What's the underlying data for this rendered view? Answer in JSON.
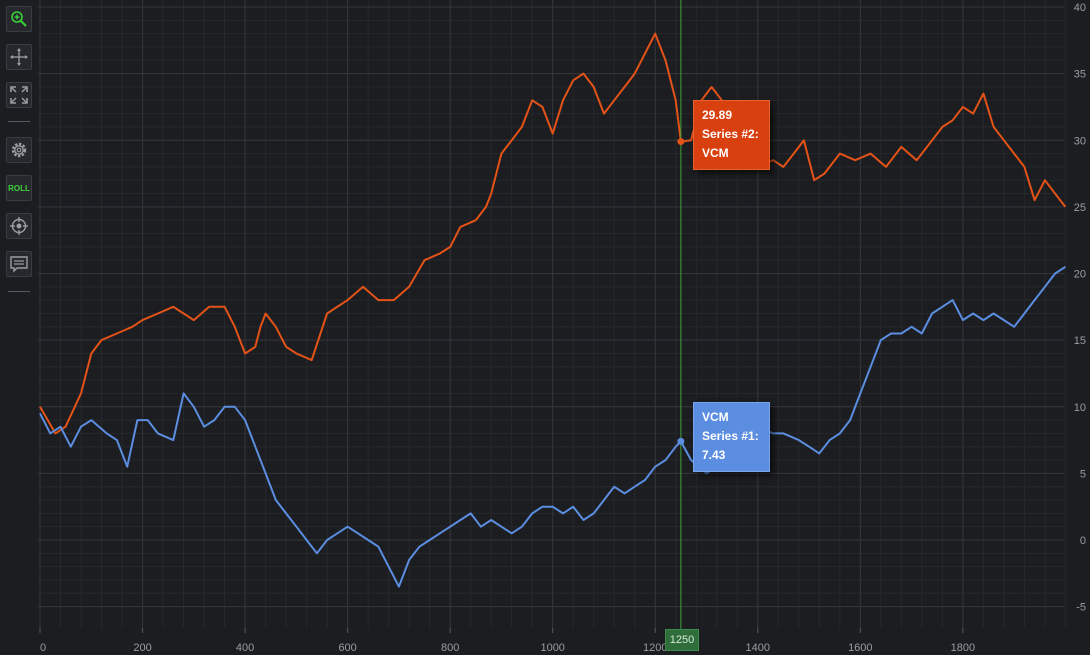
{
  "toolbar": {
    "buttons": [
      {
        "name": "zoom-icon"
      },
      {
        "name": "pan-icon"
      },
      {
        "name": "zoom-extents-icon"
      },
      {
        "name": "settings-icon"
      },
      {
        "name": "roll-icon",
        "label": "ROLL"
      },
      {
        "name": "crosshair-icon"
      },
      {
        "name": "tooltip-icon"
      }
    ]
  },
  "cursor": {
    "x_label": "1250"
  },
  "tooltips": {
    "series2": {
      "value": "29.89",
      "name": "Series #2:",
      "group": "VCM"
    },
    "series1": {
      "group": "VCM",
      "name": "Series #1:",
      "value": "7.43"
    }
  },
  "chart_data": {
    "type": "line",
    "x_ticks": [
      "0",
      "200",
      "400",
      "600",
      "800",
      "1000",
      "1200",
      "1400",
      "1600",
      "1800"
    ],
    "y_ticks": [
      "-5",
      "0",
      "5",
      "10",
      "15",
      "20",
      "25",
      "30",
      "35",
      "40"
    ],
    "xlim": [
      0,
      2000
    ],
    "ylim": [
      -5,
      40
    ],
    "grid": true,
    "cursor_x": 1250,
    "colors": {
      "series1": "#5b8de0",
      "series2": "#e35318",
      "cursor": "#3ea33e",
      "grid_major": "#34363b",
      "grid_minor": "#26282c"
    },
    "series": [
      {
        "key": "series2",
        "color": "#e35318",
        "points": [
          [
            0,
            10
          ],
          [
            30,
            8
          ],
          [
            50,
            8.5
          ],
          [
            80,
            11
          ],
          [
            100,
            14
          ],
          [
            120,
            15
          ],
          [
            150,
            15.5
          ],
          [
            180,
            16
          ],
          [
            200,
            16.5
          ],
          [
            230,
            17
          ],
          [
            260,
            17.5
          ],
          [
            280,
            17
          ],
          [
            300,
            16.5
          ],
          [
            330,
            17.5
          ],
          [
            360,
            17.5
          ],
          [
            380,
            16
          ],
          [
            400,
            14
          ],
          [
            420,
            14.5
          ],
          [
            430,
            16
          ],
          [
            440,
            17
          ],
          [
            460,
            16
          ],
          [
            480,
            14.5
          ],
          [
            500,
            14
          ],
          [
            530,
            13.5
          ],
          [
            560,
            17
          ],
          [
            600,
            18
          ],
          [
            630,
            19
          ],
          [
            660,
            18
          ],
          [
            690,
            18
          ],
          [
            720,
            19
          ],
          [
            750,
            21
          ],
          [
            780,
            21.5
          ],
          [
            800,
            22
          ],
          [
            820,
            23.5
          ],
          [
            850,
            24
          ],
          [
            870,
            25
          ],
          [
            880,
            26
          ],
          [
            900,
            29
          ],
          [
            920,
            30
          ],
          [
            940,
            31
          ],
          [
            960,
            33
          ],
          [
            980,
            32.5
          ],
          [
            1000,
            30.5
          ],
          [
            1020,
            33
          ],
          [
            1040,
            34.5
          ],
          [
            1060,
            35
          ],
          [
            1080,
            34
          ],
          [
            1100,
            32
          ],
          [
            1120,
            33
          ],
          [
            1140,
            34
          ],
          [
            1160,
            35
          ],
          [
            1180,
            36.5
          ],
          [
            1200,
            38
          ],
          [
            1220,
            36
          ],
          [
            1240,
            33
          ],
          [
            1250,
            29.9
          ],
          [
            1270,
            30
          ],
          [
            1290,
            33
          ],
          [
            1310,
            34
          ],
          [
            1330,
            33
          ],
          [
            1360,
            31.5
          ],
          [
            1380,
            29
          ],
          [
            1400,
            28
          ],
          [
            1430,
            28.5
          ],
          [
            1450,
            28
          ],
          [
            1470,
            29
          ],
          [
            1490,
            30
          ],
          [
            1510,
            27
          ],
          [
            1530,
            27.5
          ],
          [
            1560,
            29
          ],
          [
            1590,
            28.5
          ],
          [
            1620,
            29
          ],
          [
            1650,
            28
          ],
          [
            1680,
            29.5
          ],
          [
            1710,
            28.5
          ],
          [
            1740,
            30
          ],
          [
            1760,
            31
          ],
          [
            1780,
            31.5
          ],
          [
            1800,
            32.5
          ],
          [
            1820,
            32
          ],
          [
            1840,
            33.5
          ],
          [
            1860,
            31
          ],
          [
            1880,
            30
          ],
          [
            1900,
            29
          ],
          [
            1920,
            28
          ],
          [
            1940,
            25.5
          ],
          [
            1960,
            27
          ],
          [
            1980,
            26
          ],
          [
            2000,
            25
          ]
        ]
      },
      {
        "key": "series1",
        "color": "#5b8de0",
        "points": [
          [
            0,
            9.5
          ],
          [
            20,
            8
          ],
          [
            40,
            8.5
          ],
          [
            60,
            7
          ],
          [
            80,
            8.5
          ],
          [
            100,
            9
          ],
          [
            130,
            8
          ],
          [
            150,
            7.5
          ],
          [
            170,
            5.5
          ],
          [
            190,
            9
          ],
          [
            210,
            9
          ],
          [
            230,
            8
          ],
          [
            260,
            7.5
          ],
          [
            280,
            11
          ],
          [
            300,
            10
          ],
          [
            320,
            8.5
          ],
          [
            340,
            9
          ],
          [
            360,
            10
          ],
          [
            380,
            10
          ],
          [
            400,
            9
          ],
          [
            420,
            7
          ],
          [
            440,
            5
          ],
          [
            460,
            3
          ],
          [
            480,
            2
          ],
          [
            500,
            1
          ],
          [
            520,
            0
          ],
          [
            540,
            -1
          ],
          [
            560,
            0
          ],
          [
            580,
            0.5
          ],
          [
            600,
            1
          ],
          [
            620,
            0.5
          ],
          [
            640,
            0
          ],
          [
            660,
            -0.5
          ],
          [
            680,
            -2
          ],
          [
            700,
            -3.5
          ],
          [
            720,
            -1.5
          ],
          [
            740,
            -0.5
          ],
          [
            760,
            0
          ],
          [
            780,
            0.5
          ],
          [
            800,
            1
          ],
          [
            820,
            1.5
          ],
          [
            840,
            2
          ],
          [
            860,
            1
          ],
          [
            880,
            1.5
          ],
          [
            900,
            1
          ],
          [
            920,
            0.5
          ],
          [
            940,
            1
          ],
          [
            960,
            2
          ],
          [
            980,
            2.5
          ],
          [
            1000,
            2.5
          ],
          [
            1020,
            2
          ],
          [
            1040,
            2.5
          ],
          [
            1060,
            1.5
          ],
          [
            1080,
            2
          ],
          [
            1100,
            3
          ],
          [
            1120,
            4
          ],
          [
            1140,
            3.5
          ],
          [
            1160,
            4
          ],
          [
            1180,
            4.5
          ],
          [
            1200,
            5.5
          ],
          [
            1220,
            6
          ],
          [
            1240,
            7
          ],
          [
            1250,
            7.4
          ],
          [
            1270,
            6
          ],
          [
            1300,
            5
          ],
          [
            1320,
            5.5
          ],
          [
            1340,
            6.5
          ],
          [
            1360,
            7.5
          ],
          [
            1380,
            9
          ],
          [
            1400,
            8.5
          ],
          [
            1430,
            8
          ],
          [
            1450,
            8
          ],
          [
            1480,
            7.5
          ],
          [
            1500,
            7
          ],
          [
            1520,
            6.5
          ],
          [
            1540,
            7.5
          ],
          [
            1560,
            8
          ],
          [
            1580,
            9
          ],
          [
            1600,
            11
          ],
          [
            1620,
            13
          ],
          [
            1640,
            15
          ],
          [
            1660,
            15.5
          ],
          [
            1680,
            15.5
          ],
          [
            1700,
            16
          ],
          [
            1720,
            15.5
          ],
          [
            1740,
            17
          ],
          [
            1760,
            17.5
          ],
          [
            1780,
            18
          ],
          [
            1800,
            16.5
          ],
          [
            1820,
            17
          ],
          [
            1840,
            16.5
          ],
          [
            1860,
            17
          ],
          [
            1880,
            16.5
          ],
          [
            1900,
            16
          ],
          [
            1920,
            17
          ],
          [
            1940,
            18
          ],
          [
            1960,
            19
          ],
          [
            1980,
            20
          ],
          [
            2000,
            20.5
          ]
        ]
      }
    ]
  }
}
